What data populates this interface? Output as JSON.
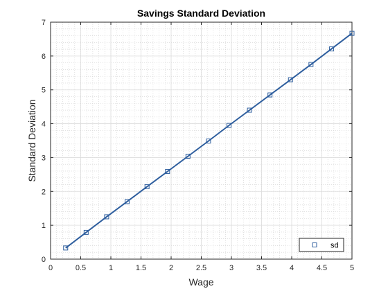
{
  "chart_data": {
    "type": "line",
    "title": "Savings Standard Deviation",
    "xlabel": "Wage",
    "ylabel": "Standard Deviation",
    "xlim": [
      0,
      5
    ],
    "ylim": [
      0,
      7
    ],
    "xticks": [
      0,
      0.5,
      1,
      1.5,
      2,
      2.5,
      3,
      3.5,
      4,
      4.5,
      5
    ],
    "xtick_labels": [
      "0",
      "0.5",
      "1",
      "1.5",
      "2",
      "2.5",
      "3",
      "3.5",
      "4",
      "4.5",
      "5"
    ],
    "yticks": [
      0,
      1,
      2,
      3,
      4,
      5,
      6,
      7
    ],
    "ytick_labels": [
      "0",
      "1",
      "2",
      "3",
      "4",
      "5",
      "6",
      "7"
    ],
    "grid": "major and minor dotted",
    "legend_position": "bottom-right",
    "series": [
      {
        "name": "sd",
        "color": "#2e5e9e",
        "marker": "square",
        "x": [
          0.25,
          0.59,
          0.93,
          1.27,
          1.6,
          1.94,
          2.28,
          2.62,
          2.96,
          3.3,
          3.64,
          3.98,
          4.32,
          4.66,
          5.0
        ],
        "y": [
          0.33,
          0.79,
          1.25,
          1.7,
          2.14,
          2.59,
          3.04,
          3.49,
          3.95,
          4.4,
          4.85,
          5.3,
          5.75,
          6.21,
          6.67
        ]
      }
    ]
  }
}
